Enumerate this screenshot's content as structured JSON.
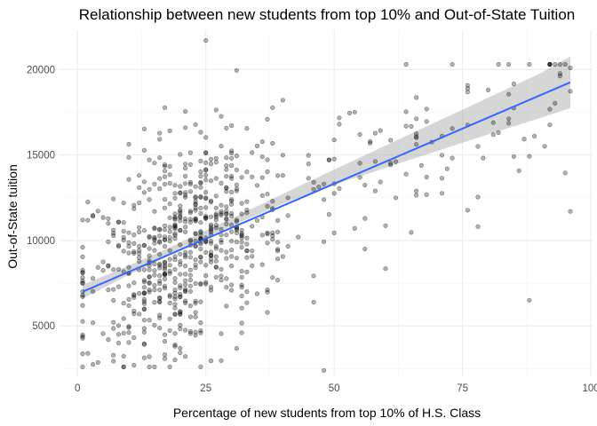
{
  "chart_data": {
    "type": "scatter",
    "title": "Relationship between new students from top 10% and Out-of-State Tuition",
    "xlabel": "Percentage of new students from top 10% of H.S. Class",
    "ylabel": "Out-of-State tuition",
    "xlim": [
      -3.5,
      100.5
    ],
    "ylim": [
      2000,
      22300
    ],
    "x_ticks": [
      0,
      25,
      50,
      75,
      100
    ],
    "y_ticks": [
      5000,
      10000,
      15000,
      20000
    ],
    "grid": true,
    "legend": "none",
    "point_count": 777,
    "point_seed": 7,
    "fit_line": {
      "method": "linear",
      "x": [
        1,
        96
      ],
      "y": [
        7000,
        19250
      ]
    },
    "confidence_band": {
      "x": [
        1,
        10,
        20,
        30,
        40,
        50,
        60,
        70,
        80,
        90,
        96
      ],
      "lower": [
        6600,
        7980,
        9430,
        10850,
        12150,
        13250,
        14250,
        15230,
        16200,
        17150,
        17740
      ],
      "upper": [
        7400,
        8520,
        9870,
        11290,
        12720,
        14150,
        15550,
        16950,
        18350,
        19750,
        20760
      ]
    },
    "sample_points": [
      {
        "x": 25,
        "y": 21700
      },
      {
        "x": 48,
        "y": 2400
      },
      {
        "x": 9,
        "y": 2600
      },
      {
        "x": 88,
        "y": 6500
      },
      {
        "x": 96,
        "y": 11700
      },
      {
        "x": 96,
        "y": 20100
      },
      {
        "x": 1,
        "y": 11200
      }
    ],
    "colors": {
      "points": "#000000",
      "fit_line": "#3366ff",
      "band": "#999999",
      "grid": "#ebebeb"
    }
  }
}
